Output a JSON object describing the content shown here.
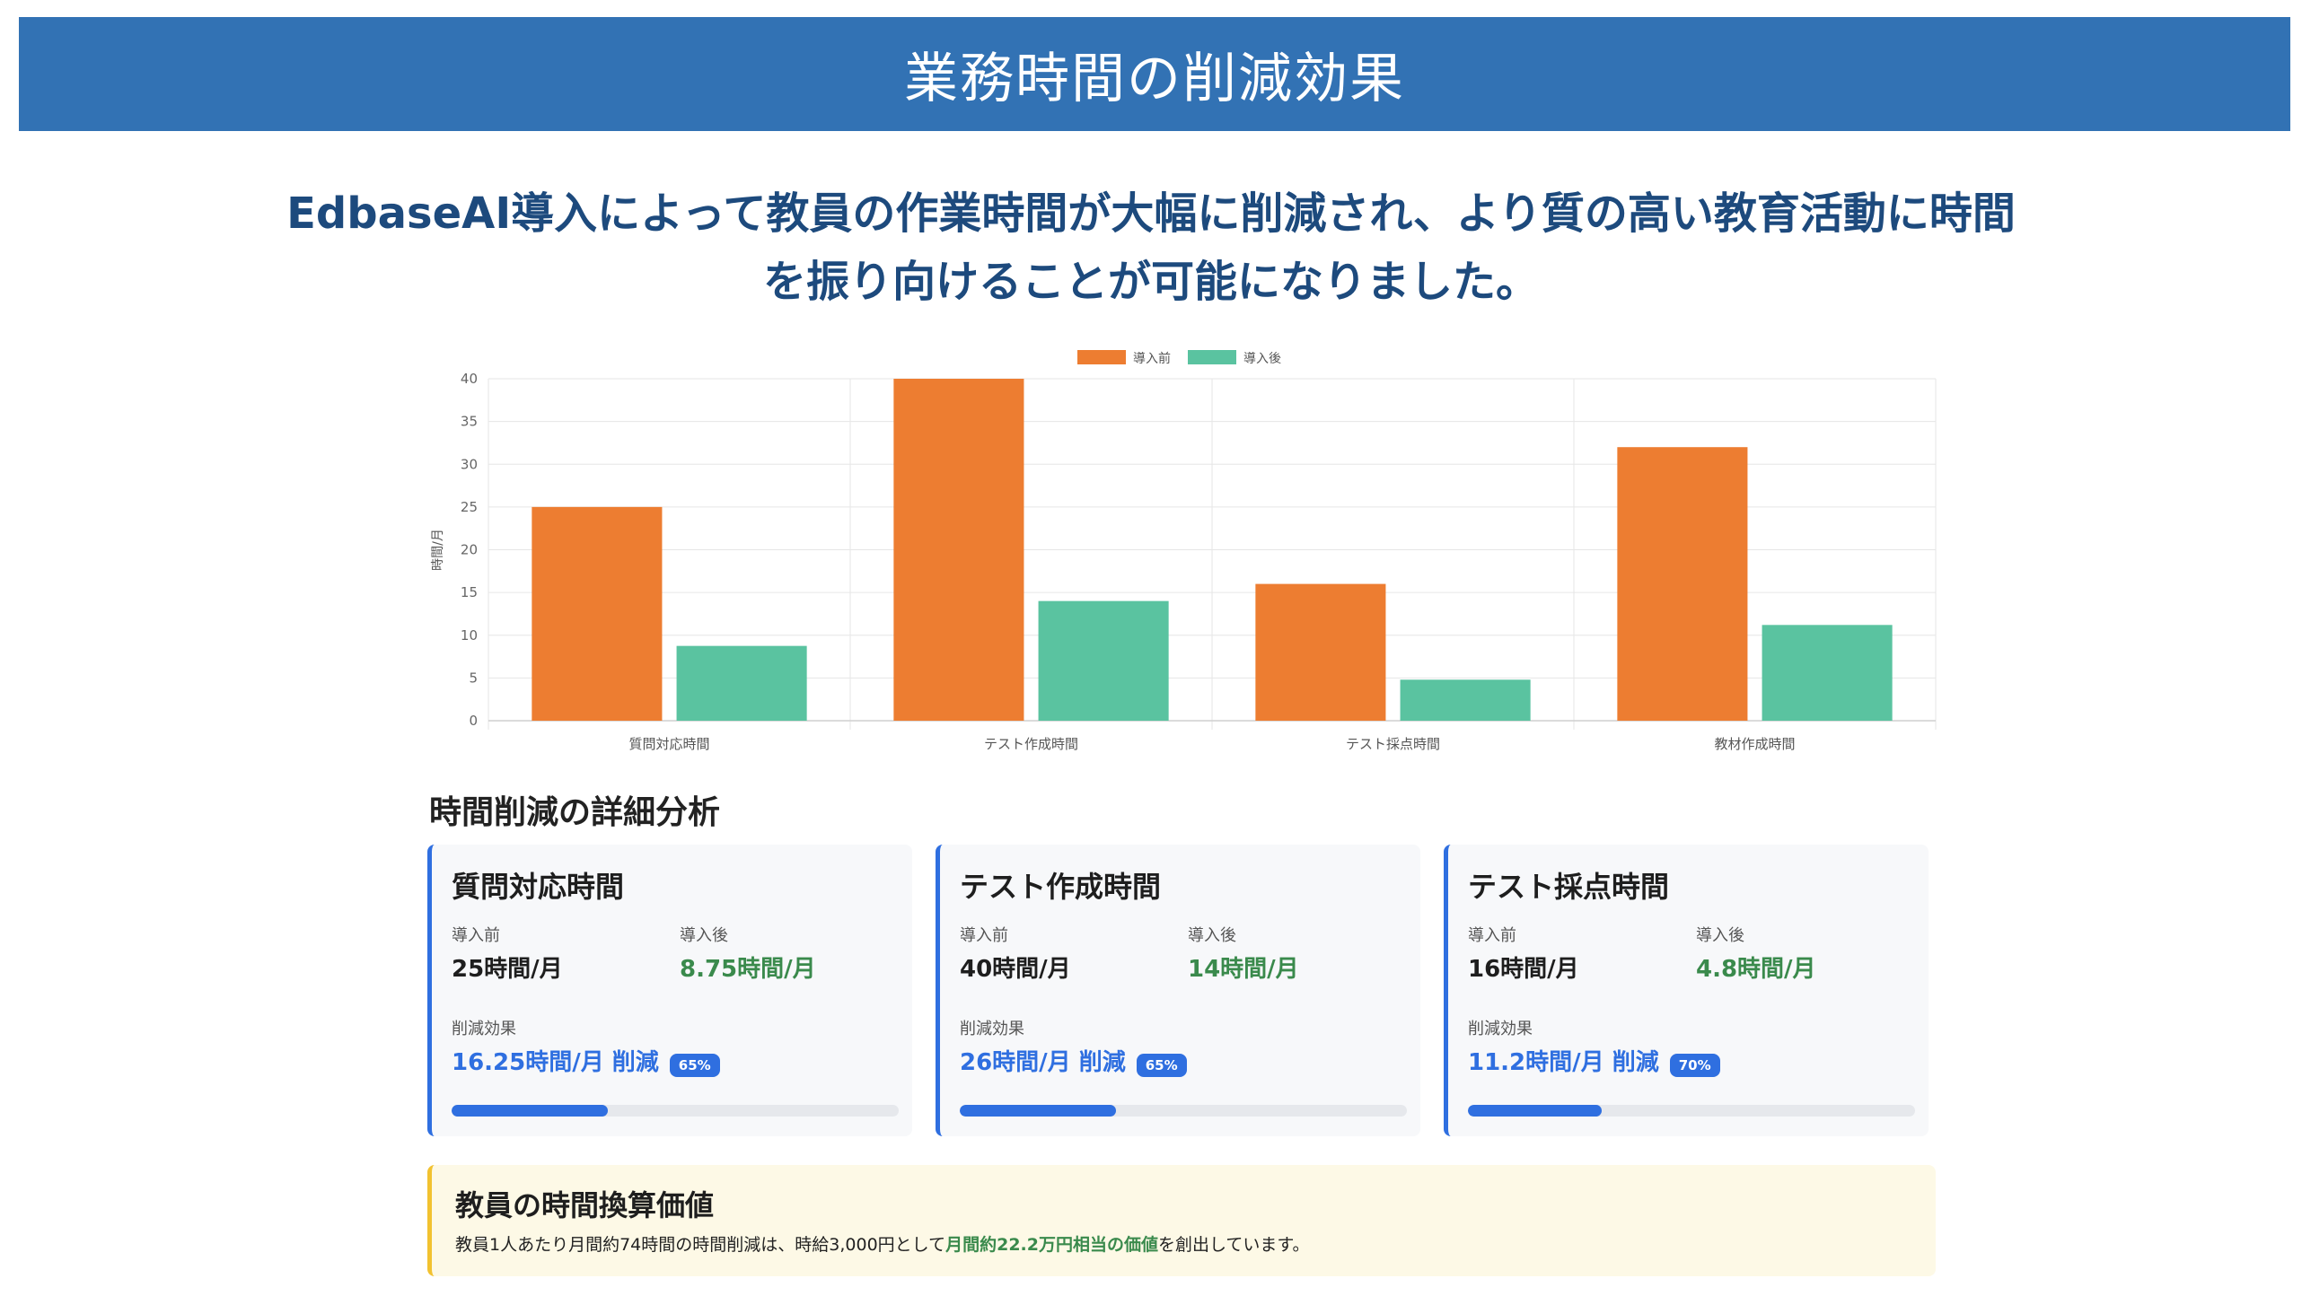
{
  "header": {
    "title": "業務時間の削減効果"
  },
  "lead": {
    "text": "EdbaseAI導入によって教員の作業時間が大幅に削減され、より質の高い教育活動に時間を振り向けることが可能になりました。"
  },
  "colors": {
    "before": "#ed7d31",
    "after": "#5ac3a0",
    "accent": "#2f6fe0",
    "banner": "#3272b4"
  },
  "chart_data": {
    "type": "bar",
    "categories": [
      "質問対応時間",
      "テスト作成時間",
      "テスト採点時間",
      "教材作成時間"
    ],
    "series": [
      {
        "name": "導入前",
        "values": [
          25,
          40,
          16,
          32
        ]
      },
      {
        "name": "導入後",
        "values": [
          8.75,
          14,
          4.8,
          11.2
        ]
      }
    ],
    "xlabel": "",
    "ylabel": "時間/月",
    "ylim": [
      0,
      40
    ],
    "yticks": [
      0,
      5,
      10,
      15,
      20,
      25,
      30,
      35,
      40
    ],
    "grid": true,
    "legend": "top-center"
  },
  "details": {
    "title": "時間削減の詳細分析",
    "before_label": "導入前",
    "after_label": "導入後",
    "effect_label": "削減効果",
    "cards": [
      {
        "title": "質問対応時間",
        "before": "25時間/月",
        "after": "8.75時間/月",
        "reduction": "16.25時間/月 削減",
        "badge": "65%",
        "progress": 0.35
      },
      {
        "title": "テスト作成時間",
        "before": "40時間/月",
        "after": "14時間/月",
        "reduction": "26時間/月 削減",
        "badge": "65%",
        "progress": 0.35
      },
      {
        "title": "テスト採点時間",
        "before": "16時間/月",
        "after": "4.8時間/月",
        "reduction": "11.2時間/月 削減",
        "badge": "70%",
        "progress": 0.3
      }
    ]
  },
  "value_note": {
    "title": "教員の時間換算価値",
    "text_before": "教員1人あたり月間約74時間の時間削減は、時給3,000円として",
    "highlight": "月間約22.2万円相当の価値",
    "text_after": "を創出しています。"
  }
}
